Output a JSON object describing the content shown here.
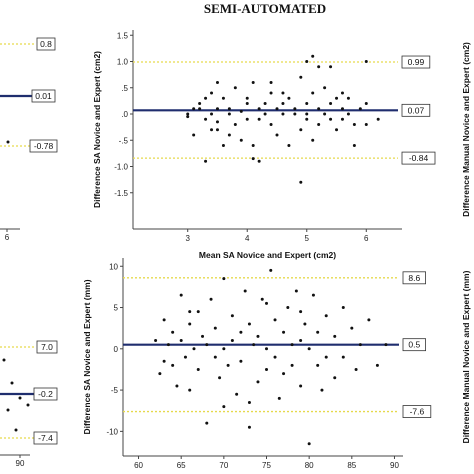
{
  "figure_title": "SEMI-AUTOMATED",
  "colors": {
    "mean_line": "#1f2d6e",
    "loa_line": "#e6d94c",
    "point": "#111111"
  },
  "chart_data": [
    {
      "type": "scatter",
      "panel": "left-top-partial",
      "labels": {
        "upper": "0.8",
        "mean": "0.01",
        "lower": "-0.78"
      },
      "x_tick_labels": [
        "6"
      ],
      "mean": 0.01,
      "upper": 0.8,
      "lower": -0.78
    },
    {
      "type": "scatter",
      "panel": "top-main",
      "xlabel": "Mean SA Novice and Expert (cm2)",
      "ylabel": "Difference SA Novice and Expert (cm2)",
      "right_ylabel": "Difference Manual Novice and Expert (cm2)",
      "xlim": [
        2.4,
        6.6
      ],
      "ylim": [
        -1.6,
        1.6
      ],
      "x_ticks": [
        3,
        4,
        5,
        6
      ],
      "x_tick_labels": [
        "3",
        "4",
        "5",
        "6"
      ],
      "y_ticks": [
        1.5,
        1.0,
        0.5,
        0,
        -0.5,
        -1.0,
        -1.5
      ],
      "y_tick_labels": [
        "1.5",
        "1.0",
        ".5",
        ".0",
        "-.5",
        "-1.0",
        "-1.5"
      ],
      "mean": 0.07,
      "upper": 0.99,
      "lower": -0.84,
      "labels": {
        "upper": "0.99",
        "mean": "0.07",
        "lower": "-0.84"
      },
      "points": [
        [
          3.0,
          0.0
        ],
        [
          3.0,
          -0.05
        ],
        [
          3.1,
          0.1
        ],
        [
          3.1,
          -0.4
        ],
        [
          3.2,
          0.2
        ],
        [
          3.2,
          0.1
        ],
        [
          3.3,
          -0.1
        ],
        [
          3.3,
          0.3
        ],
        [
          3.4,
          0.0
        ],
        [
          3.4,
          0.4
        ],
        [
          3.4,
          -0.3
        ],
        [
          3.5,
          0.6
        ],
        [
          3.5,
          0.1
        ],
        [
          3.5,
          -0.15
        ],
        [
          3.6,
          0.3
        ],
        [
          3.6,
          -0.6
        ],
        [
          3.7,
          0.1
        ],
        [
          3.7,
          0.0
        ],
        [
          3.8,
          0.5
        ],
        [
          3.8,
          -0.2
        ],
        [
          3.9,
          0.05
        ],
        [
          3.9,
          -0.5
        ],
        [
          4.0,
          0.3
        ],
        [
          4.0,
          -0.1
        ],
        [
          4.0,
          0.2
        ],
        [
          4.1,
          0.6
        ],
        [
          4.1,
          -0.6
        ],
        [
          4.2,
          0.1
        ],
        [
          4.2,
          -0.1
        ],
        [
          4.3,
          0.2
        ],
        [
          4.3,
          0.0
        ],
        [
          4.4,
          -0.2
        ],
        [
          4.4,
          0.4
        ],
        [
          4.5,
          0.1
        ],
        [
          4.5,
          -0.4
        ],
        [
          4.6,
          0.0
        ],
        [
          4.6,
          0.2
        ],
        [
          4.7,
          -0.6
        ],
        [
          4.7,
          0.3
        ],
        [
          4.8,
          0.1
        ],
        [
          4.8,
          0.0
        ],
        [
          4.9,
          -0.3
        ],
        [
          4.9,
          0.7
        ],
        [
          5.0,
          0.2
        ],
        [
          5.0,
          -0.1
        ],
        [
          5.0,
          0.0
        ],
        [
          5.1,
          0.4
        ],
        [
          5.1,
          -0.5
        ],
        [
          5.2,
          0.1
        ],
        [
          5.2,
          -0.2
        ],
        [
          5.3,
          0.5
        ],
        [
          5.3,
          0.0
        ],
        [
          5.4,
          -0.1
        ],
        [
          5.4,
          0.2
        ],
        [
          5.5,
          0.3
        ],
        [
          5.5,
          -0.3
        ],
        [
          5.6,
          0.1
        ],
        [
          5.6,
          -0.1
        ],
        [
          5.7,
          0.3
        ],
        [
          5.7,
          0.0
        ],
        [
          5.8,
          -0.2
        ],
        [
          5.9,
          0.1
        ],
        [
          6.0,
          -0.2
        ],
        [
          6.0,
          0.2
        ],
        [
          3.3,
          -0.9
        ],
        [
          4.2,
          -0.9
        ],
        [
          4.1,
          -0.85
        ],
        [
          5.0,
          1.0
        ],
        [
          5.4,
          0.9
        ],
        [
          6.0,
          1.0
        ],
        [
          5.6,
          0.4
        ],
        [
          4.6,
          0.4
        ],
        [
          5.1,
          1.1
        ],
        [
          4.9,
          -1.3
        ],
        [
          3.7,
          -0.4
        ],
        [
          5.8,
          -0.6
        ],
        [
          6.2,
          -0.1
        ],
        [
          3.5,
          -0.3
        ],
        [
          4.4,
          0.6
        ],
        [
          5.2,
          0.9
        ]
      ]
    },
    {
      "type": "scatter",
      "panel": "left-bottom-partial",
      "labels": {
        "upper": "7.0",
        "mean": "-0.2",
        "lower": "-7.4"
      },
      "x_tick_labels": [
        "90"
      ],
      "mean": -0.2,
      "upper": 7.0,
      "lower": -7.4
    },
    {
      "type": "scatter",
      "panel": "bottom-main",
      "xlabel": "Mean SA Novice and Expert (mm)",
      "ylabel": "Difference SA Novice and Expert (mm)",
      "right_ylabel": "Difference Manual Novice and Expert (mm)",
      "xlim": [
        59,
        91
      ],
      "ylim": [
        -12.5,
        11
      ],
      "x_ticks": [
        60,
        65,
        70,
        75,
        80,
        85,
        90
      ],
      "x_tick_labels": [
        "60",
        "65",
        "70",
        "75",
        "80",
        "85",
        "90"
      ],
      "y_ticks": [
        10,
        5,
        0,
        -5,
        -10
      ],
      "y_tick_labels": [
        "10",
        "5",
        "0",
        "-5",
        "-10"
      ],
      "mean": 0.5,
      "upper": 8.6,
      "lower": -7.6,
      "labels": {
        "upper": "8.6",
        "mean": "0.5",
        "lower": "-7.6"
      },
      "points": [
        [
          62,
          1.0
        ],
        [
          62.5,
          -3.0
        ],
        [
          63,
          3.5
        ],
        [
          63,
          -1.5
        ],
        [
          63.5,
          0.5
        ],
        [
          64,
          -2.0
        ],
        [
          64,
          2.0
        ],
        [
          64.5,
          -4.5
        ],
        [
          65,
          6.5
        ],
        [
          65,
          1.0
        ],
        [
          65.5,
          -1.0
        ],
        [
          66,
          3.0
        ],
        [
          66,
          -5.0
        ],
        [
          66.5,
          0.0
        ],
        [
          67,
          4.5
        ],
        [
          67,
          -2.5
        ],
        [
          67.5,
          1.5
        ],
        [
          68,
          -9.0
        ],
        [
          68,
          0.5
        ],
        [
          68.5,
          6.0
        ],
        [
          69,
          -1.0
        ],
        [
          69,
          2.5
        ],
        [
          69.5,
          -3.5
        ],
        [
          70,
          8.5
        ],
        [
          70,
          0.0
        ],
        [
          70.5,
          -2.0
        ],
        [
          71,
          4.0
        ],
        [
          71,
          1.0
        ],
        [
          71.5,
          -5.5
        ],
        [
          72,
          2.0
        ],
        [
          72,
          -1.5
        ],
        [
          72.5,
          7.0
        ],
        [
          73,
          -9.5
        ],
        [
          73,
          3.0
        ],
        [
          73.5,
          0.5
        ],
        [
          74,
          -4.0
        ],
        [
          74,
          1.5
        ],
        [
          74.5,
          6.0
        ],
        [
          75,
          -2.5
        ],
        [
          75,
          0.0
        ],
        [
          75.5,
          9.5
        ],
        [
          76,
          -1.0
        ],
        [
          76,
          3.5
        ],
        [
          76.5,
          -6.0
        ],
        [
          77,
          2.0
        ],
        [
          77,
          -3.0
        ],
        [
          77.5,
          5.0
        ],
        [
          78,
          0.5
        ],
        [
          78,
          -2.0
        ],
        [
          78.5,
          7.0
        ],
        [
          79,
          -4.5
        ],
        [
          79,
          1.0
        ],
        [
          79.5,
          3.0
        ],
        [
          80,
          -11.5
        ],
        [
          80,
          0.0
        ],
        [
          80.5,
          6.5
        ],
        [
          81,
          -2.0
        ],
        [
          81,
          2.0
        ],
        [
          81.5,
          -5.0
        ],
        [
          82,
          4.0
        ],
        [
          82,
          -1.0
        ],
        [
          83,
          1.5
        ],
        [
          83,
          -3.5
        ],
        [
          84,
          5.0
        ],
        [
          84,
          -1.0
        ],
        [
          85,
          2.5
        ],
        [
          85.5,
          -2.5
        ],
        [
          86,
          0.5
        ],
        [
          87,
          3.5
        ],
        [
          88,
          -2.0
        ],
        [
          89,
          0.5
        ],
        [
          70,
          -7.0
        ],
        [
          75,
          5.5
        ],
        [
          66,
          4.5
        ],
        [
          79,
          4.5
        ],
        [
          73,
          -6.5
        ]
      ]
    }
  ]
}
